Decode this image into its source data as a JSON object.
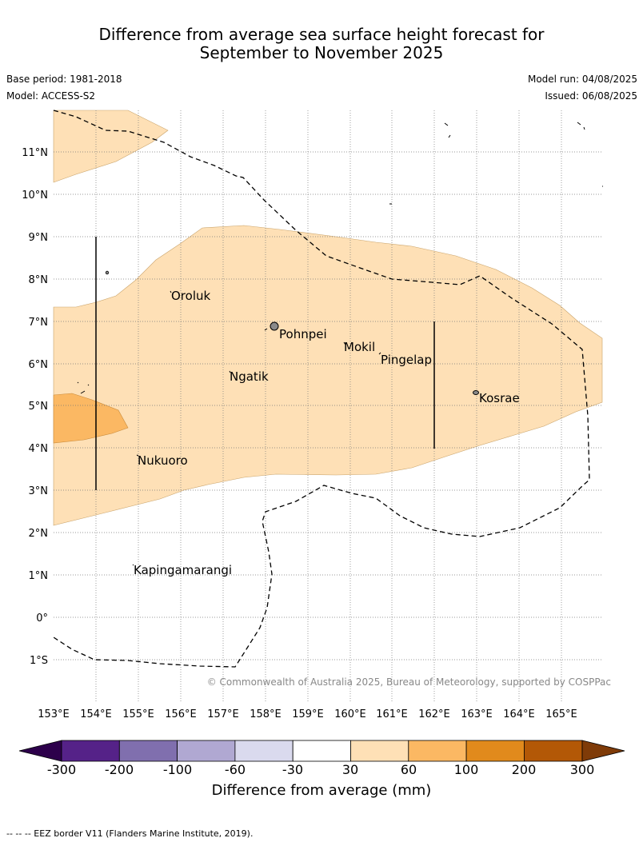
{
  "title_line1": "Difference from average sea surface height forecast for",
  "title_line2": "September to November 2025",
  "base_period": "Base period: 1981-2018",
  "model": "Model: ACCESS-S2",
  "model_run": "Model run: 04/08/2025",
  "issued": "Issued: 06/08/2025",
  "lat_labels": [
    "11°N",
    "10°N",
    "9°N",
    "8°N",
    "7°N",
    "6°N",
    "5°N",
    "4°N",
    "3°N",
    "2°N",
    "1°N",
    "0°",
    "1°S"
  ],
  "lon_labels": [
    "153°E",
    "154°E",
    "155°E",
    "156°E",
    "157°E",
    "158°E",
    "159°E",
    "160°E",
    "161°E",
    "162°E",
    "163°E",
    "164°E",
    "165°E"
  ],
  "places": {
    "oroluk": "Oroluk",
    "pohnpei": "Pohnpei",
    "mokil": "Mokil",
    "pingelap": "Pingelap",
    "ngatik": "Ngatik",
    "kosrae": "Kosrae",
    "nukuoro": "Nukuoro",
    "kapingamarangi": "Kapingamarangi"
  },
  "copyright": "© Commonwealth of Australia 2025, Bureau of Meteorology, supported by COSPPac",
  "colorbar": {
    "ticks": [
      "-300",
      "-200",
      "-100",
      "-60",
      "-30",
      "30",
      "60",
      "100",
      "200",
      "300"
    ],
    "colors": [
      "#552288",
      "#806fae",
      "#b0a8d2",
      "#dadaee",
      "#ffffff",
      "#fee0b6",
      "#fbb863",
      "#e18a1c",
      "#b35806"
    ],
    "under_color": "#2d004b",
    "over_color": "#7f3b08",
    "label": "Difference from average (mm)"
  },
  "footer": "--  --  -- EEZ border V11 (Flanders Marine Institute, 2019)."
}
